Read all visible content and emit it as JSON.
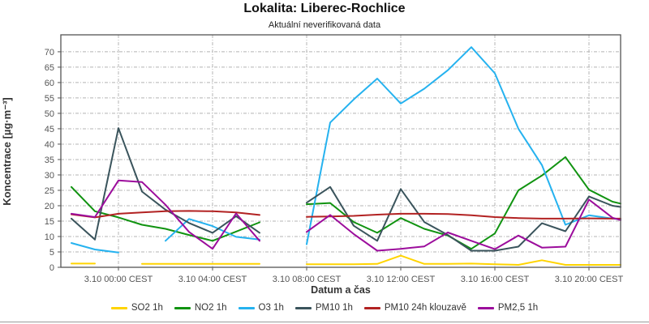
{
  "chart_data": {
    "type": "line",
    "title": "Lokalita: Liberec-Rochlice",
    "subtitle": "Aktuální neverifikovaná data",
    "xlabel": "Datum a čas",
    "ylabel": "Koncentrace [µg·m⁻³]",
    "ylim": [
      0,
      75.5
    ],
    "yticks": [
      0,
      5,
      10,
      15,
      20,
      25,
      30,
      35,
      40,
      45,
      50,
      55,
      60,
      65,
      70
    ],
    "grid": "dash-dot light gray, horizontal every 5 µg/m3, vertical every 4 h",
    "legend_position": "bottom center",
    "note_missing_data": "all series have a gap at 3.10 07:00; O3 also missing 01:00, SO2 missing 00:00",
    "x_times": [
      "2.10 22:00",
      "2.10 23:00",
      "3.10 00:00",
      "3.10 01:00",
      "3.10 02:00",
      "3.10 03:00",
      "3.10 04:00",
      "3.10 05:00",
      "3.10 06:00",
      "3.10 07:00",
      "3.10 08:00",
      "3.10 09:00",
      "3.10 10:00",
      "3.10 11:00",
      "3.10 12:00",
      "3.10 13:00",
      "3.10 14:00",
      "3.10 15:00",
      "3.10 16:00",
      "3.10 17:00",
      "3.10 18:00",
      "3.10 19:00",
      "3.10 20:00",
      "3.10 21:00",
      "3.10 21:20 (plot edge)"
    ],
    "xticks": [
      {
        "i": 2,
        "label": "3.10 00:00 CEST"
      },
      {
        "i": 6,
        "label": "3.10 04:00 CEST"
      },
      {
        "i": 10,
        "label": "3.10 08:00 CEST"
      },
      {
        "i": 14,
        "label": "3.10 12:00 CEST"
      },
      {
        "i": 18,
        "label": "3.10 16:00 CEST"
      },
      {
        "i": 22,
        "label": "3.10 20:00 CEST"
      }
    ],
    "series": [
      {
        "name": "SO2 1h",
        "color": "#ffd400",
        "values": [
          1.2,
          1.2,
          null,
          1.1,
          1.1,
          1.1,
          1.1,
          1.1,
          1.1,
          null,
          1.0,
          1.0,
          1.0,
          1.1,
          3.8,
          1.1,
          1.1,
          1.2,
          1.0,
          0.8,
          2.3,
          0.8,
          0.8,
          0.8,
          0.8
        ]
      },
      {
        "name": "NO2 1h",
        "color": "#109310",
        "values": [
          26.1,
          18.2,
          16.2,
          13.8,
          12.5,
          10.5,
          8.6,
          11.6,
          14.6,
          null,
          20.5,
          20.9,
          14.7,
          11.2,
          16.0,
          12.5,
          10.3,
          6.0,
          11.0,
          25.0,
          29.8,
          35.8,
          25.2,
          21.3,
          20.7
        ]
      },
      {
        "name": "O3 1h",
        "color": "#25b2ef",
        "values": [
          7.9,
          5.8,
          4.8,
          null,
          8.6,
          15.7,
          13.4,
          9.9,
          9.0,
          null,
          7.5,
          47.0,
          54.5,
          61.3,
          53.2,
          58.0,
          64.0,
          71.5,
          63.0,
          45.0,
          33.2,
          13.8,
          16.9,
          15.8,
          15.6
        ]
      },
      {
        "name": "PM10 1h",
        "color": "#3a545c",
        "values": [
          15.8,
          9.0,
          45.2,
          24.6,
          18.7,
          14.4,
          11.2,
          16.6,
          11.2,
          null,
          21.0,
          26.1,
          13.5,
          8.6,
          25.4,
          14.7,
          10.5,
          5.4,
          5.4,
          6.7,
          14.3,
          11.7,
          23.0,
          20.0,
          19.6
        ]
      },
      {
        "name": "PM10 24h klouzavě",
        "color": "#b22222",
        "values": [
          17.2,
          16.2,
          17.4,
          17.8,
          18.2,
          18.3,
          18.2,
          17.8,
          17.0,
          null,
          16.4,
          16.5,
          16.7,
          17.1,
          17.4,
          17.4,
          17.3,
          16.9,
          16.3,
          16.0,
          15.8,
          15.8,
          15.9,
          15.8,
          15.8
        ]
      },
      {
        "name": "PM2,5 1h",
        "color": "#9c0d9c",
        "values": [
          17.4,
          16.3,
          28.2,
          27.7,
          20.3,
          11.5,
          6.0,
          17.5,
          8.6,
          null,
          11.5,
          17.0,
          10.8,
          5.4,
          6.0,
          6.8,
          11.3,
          8.6,
          5.9,
          10.3,
          6.4,
          6.7,
          22.0,
          16.1,
          15.3
        ]
      }
    ]
  }
}
